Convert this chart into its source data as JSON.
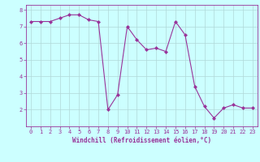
{
  "x": [
    0,
    1,
    2,
    3,
    4,
    5,
    6,
    7,
    8,
    9,
    10,
    11,
    12,
    13,
    14,
    15,
    16,
    17,
    18,
    19,
    20,
    21,
    22,
    23
  ],
  "y": [
    7.3,
    7.3,
    7.3,
    7.5,
    7.7,
    7.7,
    7.4,
    7.3,
    2.0,
    2.9,
    7.0,
    6.2,
    5.6,
    5.7,
    5.5,
    7.3,
    6.5,
    3.4,
    2.2,
    1.5,
    2.1,
    2.3,
    2.1,
    2.1
  ],
  "line_color": "#993399",
  "marker_color": "#993399",
  "bg_color": "#ccffff",
  "grid_color": "#b0d8d8",
  "axis_color": "#993399",
  "tick_color": "#993399",
  "xlabel": "Windchill (Refroidissement éolien,°C)",
  "xlim": [
    -0.5,
    23.5
  ],
  "ylim": [
    1.0,
    8.3
  ],
  "yticks": [
    2,
    3,
    4,
    5,
    6,
    7,
    8
  ],
  "xticks": [
    0,
    1,
    2,
    3,
    4,
    5,
    6,
    7,
    8,
    9,
    10,
    11,
    12,
    13,
    14,
    15,
    16,
    17,
    18,
    19,
    20,
    21,
    22,
    23
  ],
  "tick_fontsize": 5.0,
  "xlabel_fontsize": 5.5
}
